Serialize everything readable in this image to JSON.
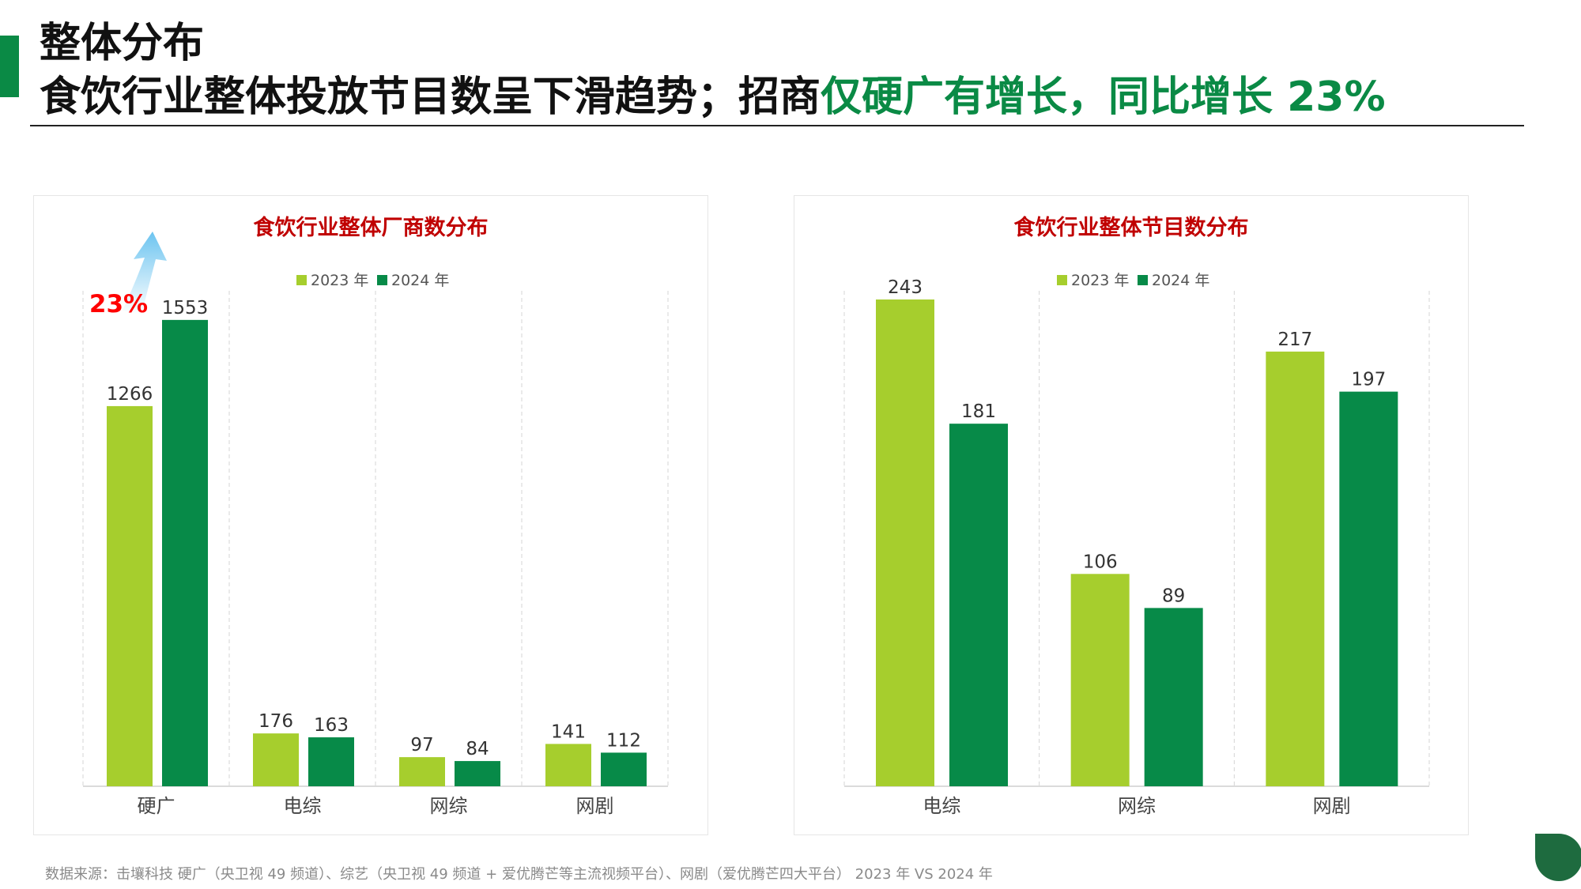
{
  "header": {
    "title_line1": "整体分布",
    "title_line2_dark": "食饮行业整体投放节目数呈下滑趋势；招商",
    "title_line2_green": "仅硬广有增长，同比增长 23%"
  },
  "colors": {
    "series_2023": "#a6ce2d",
    "series_2024": "#078a48",
    "chart_title": "#c00000",
    "accent_green": "#0a8a45",
    "growth_label": "#ff0000",
    "arrow": "#6cc4f0"
  },
  "chart_data": [
    {
      "type": "bar",
      "title": "食饮行业整体厂商数分布",
      "categories": [
        "硬广",
        "电综",
        "网综",
        "网剧"
      ],
      "series": [
        {
          "name": "2023 年",
          "values": [
            1266,
            176,
            97,
            141
          ]
        },
        {
          "name": "2024 年",
          "values": [
            1553,
            163,
            84,
            112
          ]
        }
      ],
      "ylim": [
        0,
        1600
      ],
      "legend_position": "top-center",
      "grid": "vertical dashed separators",
      "annotation": {
        "text": "23%",
        "category": "硬广",
        "icon": "up-arrow-icon"
      }
    },
    {
      "type": "bar",
      "title": "食饮行业整体节目数分布",
      "categories": [
        "电综",
        "网综",
        "网剧"
      ],
      "series": [
        {
          "name": "2023 年",
          "values": [
            243,
            106,
            217
          ]
        },
        {
          "name": "2024 年",
          "values": [
            181,
            89,
            197
          ]
        }
      ],
      "ylim": [
        0,
        243
      ],
      "legend_position": "top-center",
      "grid": "vertical dashed separators"
    }
  ],
  "footer": {
    "source": "数据来源：击壤科技 硬广（央卫视 49 频道）、综艺（央卫视 49 频道 + 爱优腾芒等主流视频平台）、网剧（爱优腾芒四大平台） 2023 年 VS 2024 年"
  }
}
